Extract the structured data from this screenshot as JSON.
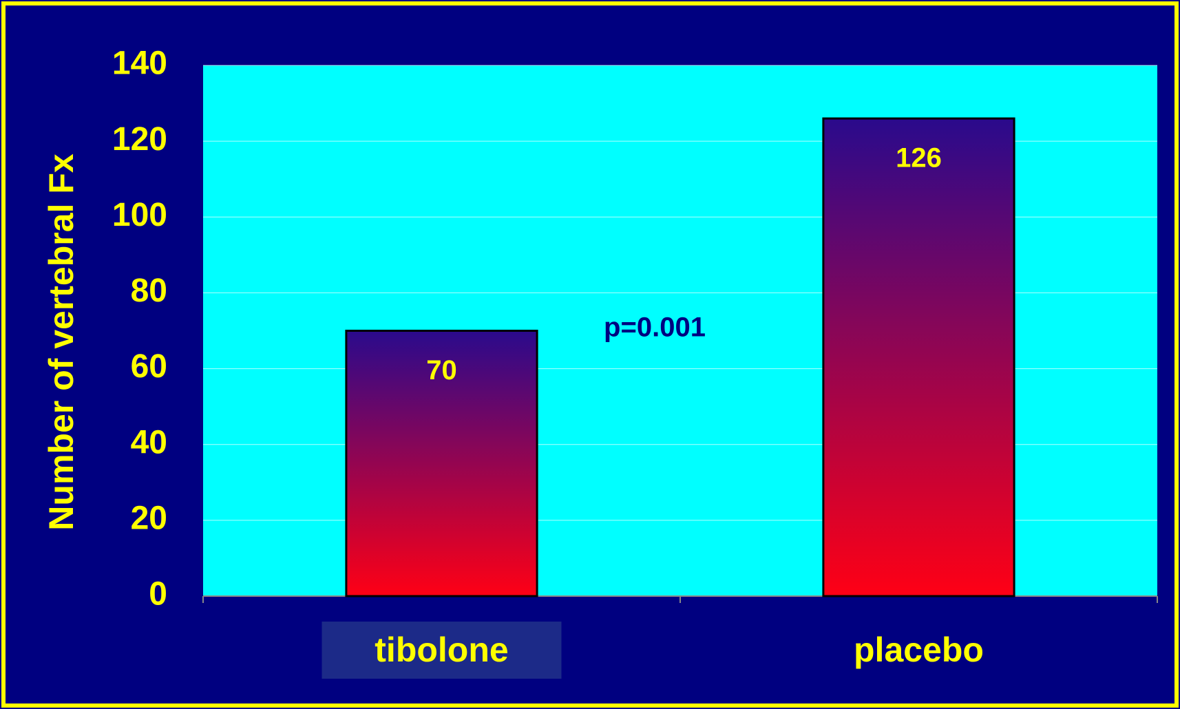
{
  "chart_data": {
    "type": "bar",
    "y_label": "Number of vertebral Fx",
    "annotation": "p=0.001",
    "categories": [
      "tibolone",
      "placebo"
    ],
    "values": [
      70,
      126
    ],
    "ylim": [
      0,
      140
    ],
    "yticks": [
      0,
      20,
      40,
      60,
      80,
      100,
      120,
      140
    ],
    "grid": true,
    "colors": {
      "background": "#000080",
      "plot": "#00ffff",
      "text": "#ffff00",
      "bar_top": "#2a0a8c",
      "bar_bottom": "#ff0015",
      "annotation": "#000080",
      "highlight": "#1c2a88"
    }
  }
}
